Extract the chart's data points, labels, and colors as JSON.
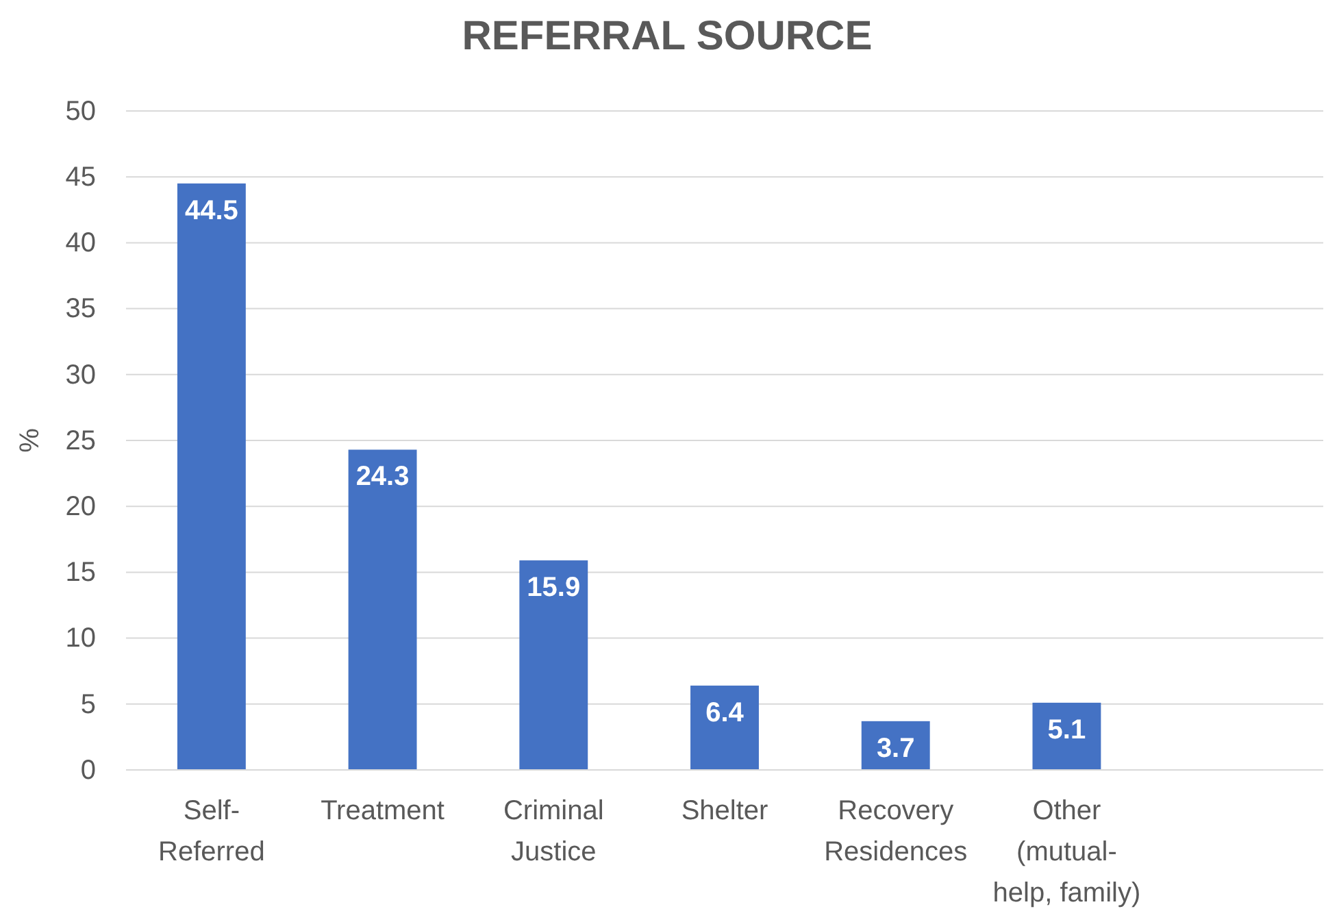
{
  "chart_data": {
    "type": "bar",
    "title": "REFERRAL SOURCE",
    "ylabel": "%",
    "categories": [
      "Self-Referred",
      "Treatment",
      "Criminal Justice",
      "Shelter",
      "Recovery Residences",
      "Other (mutual-help, family)",
      null
    ],
    "values": [
      44.5,
      24.3,
      15.9,
      6.4,
      3.7,
      5.1,
      null
    ],
    "color": "#4472c4",
    "ylim": [
      0,
      50
    ],
    "yticks": [
      0,
      5,
      10,
      15,
      20,
      25,
      30,
      35,
      40,
      45,
      50
    ],
    "grid": "y",
    "data_labels": true
  }
}
